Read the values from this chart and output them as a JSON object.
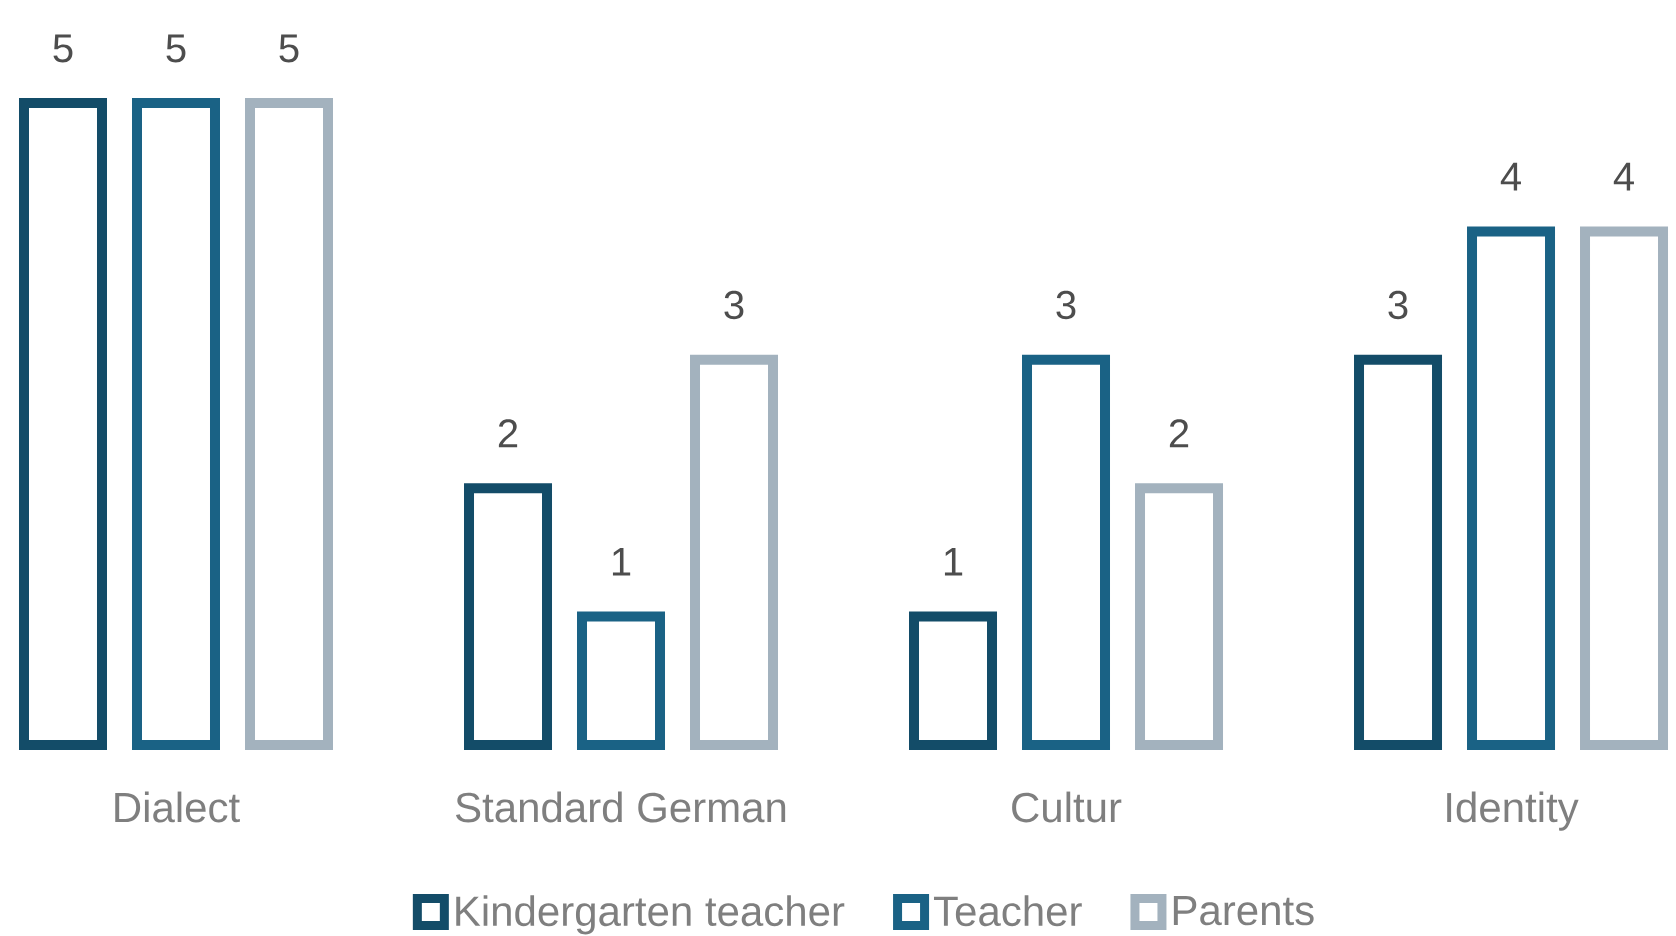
{
  "chart_data": {
    "type": "bar",
    "categories": [
      "Dialect",
      "Standard German",
      "Cultur",
      "Identity"
    ],
    "series": [
      {
        "name": "Kindergarten teacher",
        "color": "#134c68",
        "values": [
          5,
          2,
          1,
          3
        ]
      },
      {
        "name": "Teacher",
        "color": "#1a6285",
        "values": [
          5,
          1,
          3,
          4
        ]
      },
      {
        "name": "Parents",
        "color": "#a3b2be",
        "values": [
          5,
          3,
          2,
          4
        ]
      }
    ],
    "data_labels": true,
    "legend": "bottom"
  }
}
